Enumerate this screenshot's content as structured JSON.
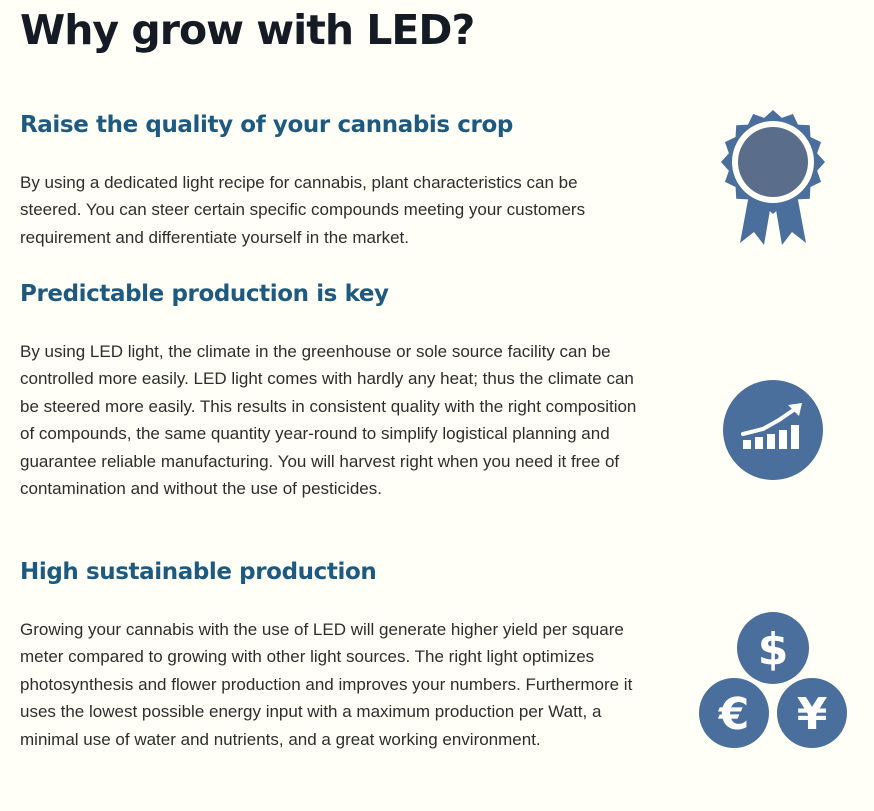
{
  "page": {
    "title": "Why grow with LED?"
  },
  "sections": [
    {
      "heading": "Raise the quality of your cannabis crop",
      "body": "By using a dedicated light recipe for cannabis, plant characteristics can be steered. You can steer certain specific compounds meeting your customers requirement and differentiate yourself in the market.",
      "icon": "award-ribbon-icon"
    },
    {
      "heading": "Predictable production is key",
      "body": "By using LED light, the climate in the greenhouse or sole source facility can be controlled more easily. LED light comes with hardly any heat; thus the climate can be steered more easily. This results in consistent quality with the right composition of compounds, the same quantity year-round to simplify logistical planning and guarantee reliable manufacturing. You will harvest right when you need it free of contamination and without the use of pesticides.",
      "icon": "growth-chart-icon"
    },
    {
      "heading": "High sustainable production",
      "body": "Growing your cannabis with the use of LED will generate higher yield per square meter compared to growing with other light sources. The right light optimizes photosynthesis and flower production and improves your numbers. Furthermore it uses the lowest possible energy input with a maximum production per Watt, a minimal use of water and nutrients, and a great working environment.",
      "icon": "currency-icon"
    }
  ],
  "icon_symbols": {
    "dollar": "$",
    "euro": "€",
    "yen": "¥"
  },
  "colors": {
    "heading": "#1e5a80",
    "title": "#151b24",
    "icon": "#4a6f9c",
    "icon_inner": "#5a6d8a",
    "background": "#fffff7"
  }
}
